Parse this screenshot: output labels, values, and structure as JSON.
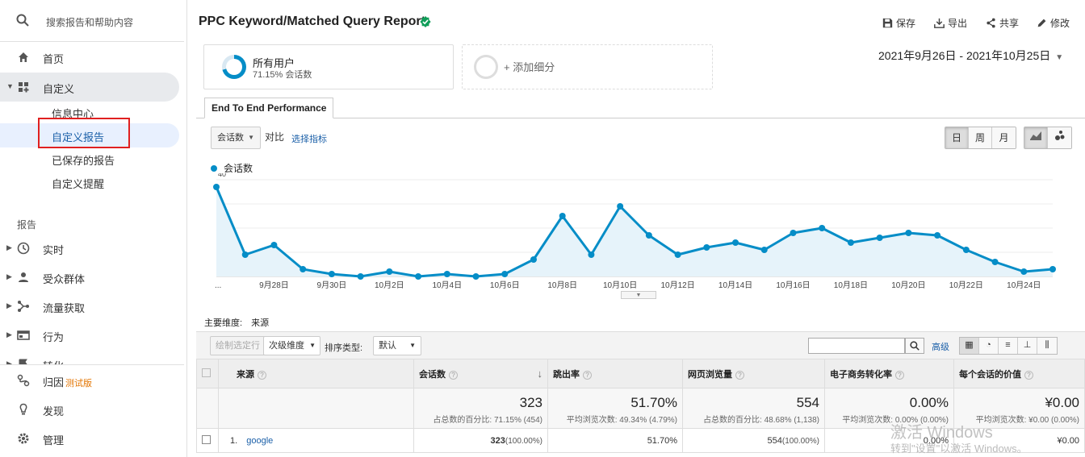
{
  "sidebar": {
    "search_placeholder": "搜索报告和帮助内容",
    "home": "首页",
    "custom": "自定义",
    "custom_sub": [
      "信息中心",
      "自定义报告",
      "已保存的报告",
      "自定义提醒"
    ],
    "reports_label": "报告",
    "reports": [
      "实时",
      "受众群体",
      "流量获取",
      "行为",
      "转化"
    ],
    "attribution": "归因",
    "beta": "测试版",
    "discover": "发现",
    "admin": "管理"
  },
  "header": {
    "title": "PPC Keyword/Matched Query Report",
    "save": "保存",
    "export": "导出",
    "share": "共享",
    "edit": "修改"
  },
  "segment": {
    "name": "所有用户",
    "pct": "71.15% 会话数",
    "add": "+ 添加细分"
  },
  "date_range": "2021年9月26日 - 2021年10月25日",
  "tab": "End To End Performance",
  "controls": {
    "metric": "会话数",
    "vs": "对比",
    "pick": "选择指标",
    "day": "日",
    "week": "周",
    "month": "月"
  },
  "chart_data": {
    "type": "area",
    "series": [
      {
        "name": "会话数",
        "color": "#058dc7",
        "values": [
          37,
          9,
          13,
          3,
          1,
          0,
          2,
          0,
          1,
          0,
          1,
          7,
          25,
          9,
          29,
          17,
          9,
          12,
          14,
          11,
          18,
          20,
          14,
          16,
          18,
          17,
          11,
          6,
          2,
          3
        ]
      }
    ],
    "x_tick_labels": [
      "...",
      "9月28日",
      "9月30日",
      "10月2日",
      "10月4日",
      "10月6日",
      "10月8日",
      "10月10日",
      "10月12日",
      "10月14日",
      "10月16日",
      "10月18日",
      "10月20日",
      "10月22日",
      "10月24日"
    ],
    "y_tick_labels": [
      "40",
      "20"
    ],
    "ylim": [
      0,
      40
    ],
    "grid": true
  },
  "table": {
    "primary_dim_label": "主要维度:",
    "primary_dim": "来源",
    "plot_rows": "绘制选定行",
    "secondary": "次级维度",
    "sort_label": "排序类型:",
    "sort": "默认",
    "advanced": "高级",
    "headers": [
      "来源",
      "会话数",
      "跳出率",
      "网页浏览量",
      "电子商务转化率",
      "每个会话的价值"
    ],
    "summary": [
      {
        "big": "323",
        "small": "占总数的百分比: 71.15% (454)"
      },
      {
        "big": "51.70%",
        "small": "平均浏览次数: 49.34% (4.79%)"
      },
      {
        "big": "554",
        "small": "占总数的百分比: 48.68% (1,138)"
      },
      {
        "big": "0.00%",
        "small": "平均浏览次数: 0.00% (0.00%)"
      },
      {
        "big": "¥0.00",
        "small": "平均浏览次数: ¥0.00 (0.00%)"
      }
    ],
    "rows": [
      {
        "idx": "1.",
        "source": "google",
        "sessions": "323",
        "sessions_pct": "(100.00%)",
        "bounce": "51.70%",
        "pageviews": "554",
        "pv_pct": "(100.00%)",
        "conv": "0.00%",
        "value": "¥0.00"
      }
    ]
  },
  "watermark": {
    "line1": "激活 Windows",
    "line2": "转到\"设置\"以激活 Windows。"
  }
}
